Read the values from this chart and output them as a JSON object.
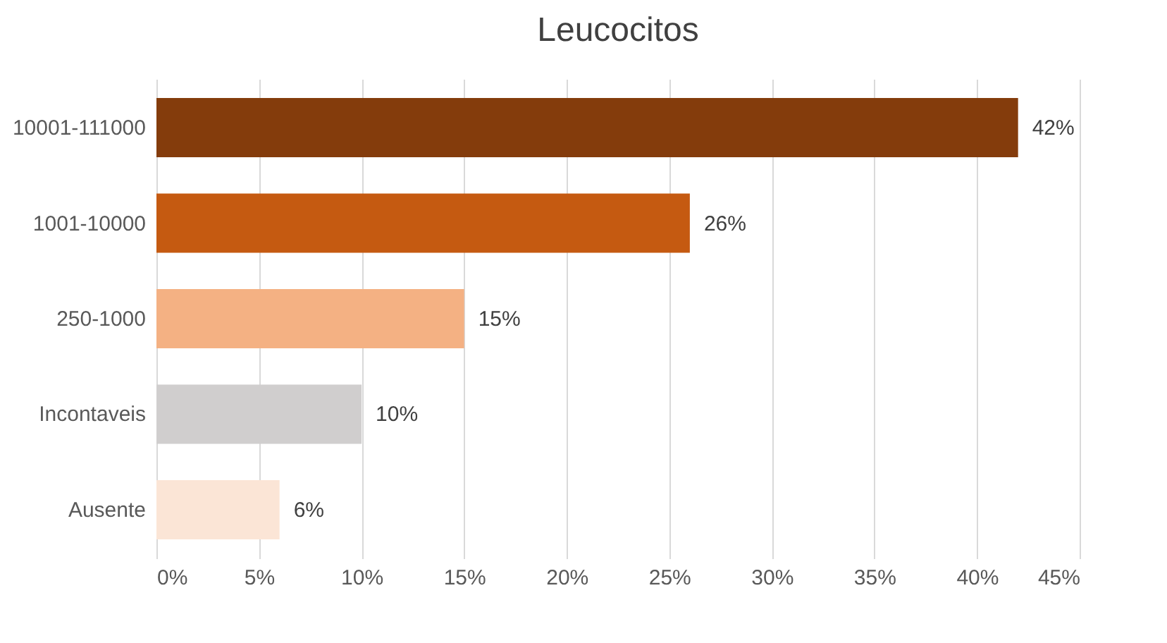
{
  "chart_data": {
    "type": "bar",
    "title": "Leucocitos",
    "orientation": "horizontal",
    "categories": [
      "10001-111000",
      "1001-10000",
      "250-1000",
      "Incontaveis",
      "Ausente"
    ],
    "values": [
      42,
      26,
      15,
      10,
      6
    ],
    "colors": [
      "#843c0c",
      "#c55a11",
      "#f4b183",
      "#d0cece",
      "#fbe5d6"
    ],
    "value_labels": [
      "42%",
      "26%",
      "15%",
      "10%",
      "6%"
    ],
    "xlim": [
      0,
      45
    ],
    "xticks": [
      {
        "value": 0,
        "label": "0%"
      },
      {
        "value": 5,
        "label": "5%"
      },
      {
        "value": 10,
        "label": "10%"
      },
      {
        "value": 15,
        "label": "15%"
      },
      {
        "value": 20,
        "label": "20%"
      },
      {
        "value": 25,
        "label": "25%"
      },
      {
        "value": 30,
        "label": "30%"
      },
      {
        "value": 35,
        "label": "35%"
      },
      {
        "value": 40,
        "label": "40%"
      },
      {
        "value": 45,
        "label": "45%"
      }
    ],
    "grid": "x"
  }
}
